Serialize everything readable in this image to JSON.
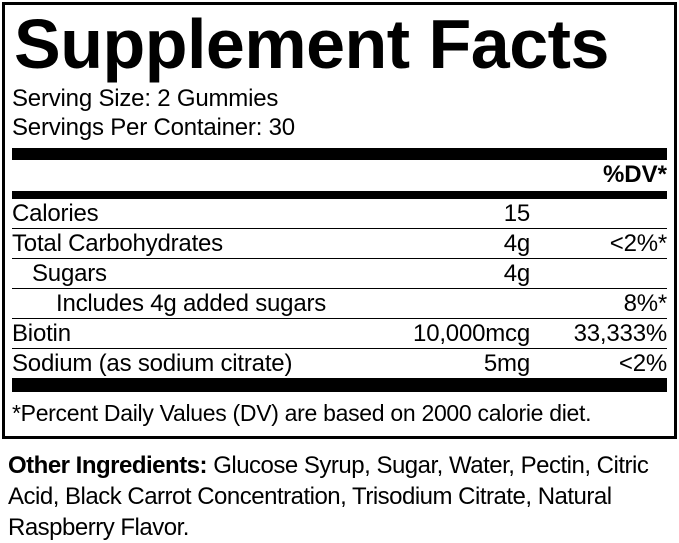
{
  "panel": {
    "title": "Supplement Facts",
    "serving_size": "Serving Size: 2 Gummies",
    "servings_per_container": "Servings Per Container: 30",
    "dv_header": "%DV*",
    "rows": [
      {
        "name": "Calories",
        "amount": "15",
        "dv": "",
        "indent": 0
      },
      {
        "name": "Total Carbohydrates",
        "amount": "4g",
        "dv": "<2%*",
        "indent": 0
      },
      {
        "name": "Sugars",
        "amount": "4g",
        "dv": "",
        "indent": 1
      },
      {
        "name": "Includes 4g added sugars",
        "amount": "",
        "dv": "8%*",
        "indent": 2
      },
      {
        "name": "Biotin",
        "amount": "10,000mcg",
        "dv": "33,333%",
        "indent": 0
      },
      {
        "name": "Sodium (as sodium citrate)",
        "amount": "5mg",
        "dv": "<2%",
        "indent": 0
      }
    ],
    "footnote": "*Percent Daily Values (DV) are based on 2000 calorie diet."
  },
  "other_ingredients": {
    "label": "Other Ingredients:",
    "text": " Glucose Syrup, Sugar, Water, Pectin, Citric Acid, Black Carrot Concentration, Trisodium Citrate, Natural Raspberry Flavor."
  },
  "colors": {
    "text": "#000000",
    "background": "#ffffff",
    "border": "#000000"
  }
}
